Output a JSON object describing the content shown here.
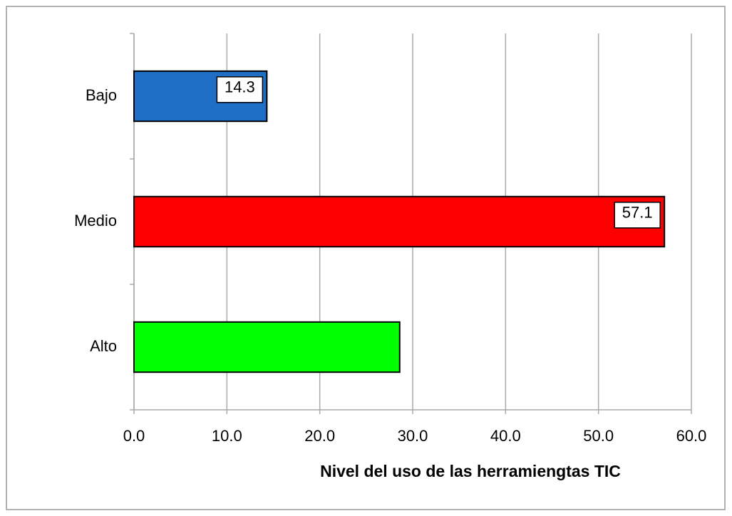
{
  "chart_data": {
    "type": "hbar",
    "x_label": "Nivel del uso de las herramiengtas TIC",
    "categories": [
      "Bajo",
      "Medio",
      "Alto"
    ],
    "values": [
      14.3,
      57.1,
      28.6
    ],
    "value_labels": [
      "14.3",
      "57.1",
      null
    ],
    "colors": [
      "#1f6fc6",
      "#ff0000",
      "#00ff00"
    ],
    "xlim": [
      0,
      60
    ],
    "xticks": [
      {
        "value": 0,
        "label": "0.0"
      },
      {
        "value": 10,
        "label": "10.0"
      },
      {
        "value": 20,
        "label": "20.0"
      },
      {
        "value": 30,
        "label": "30.0"
      },
      {
        "value": 40,
        "label": "40.0"
      },
      {
        "value": 50,
        "label": "50.0"
      },
      {
        "value": 60,
        "label": "60.0"
      }
    ],
    "grid": true
  }
}
